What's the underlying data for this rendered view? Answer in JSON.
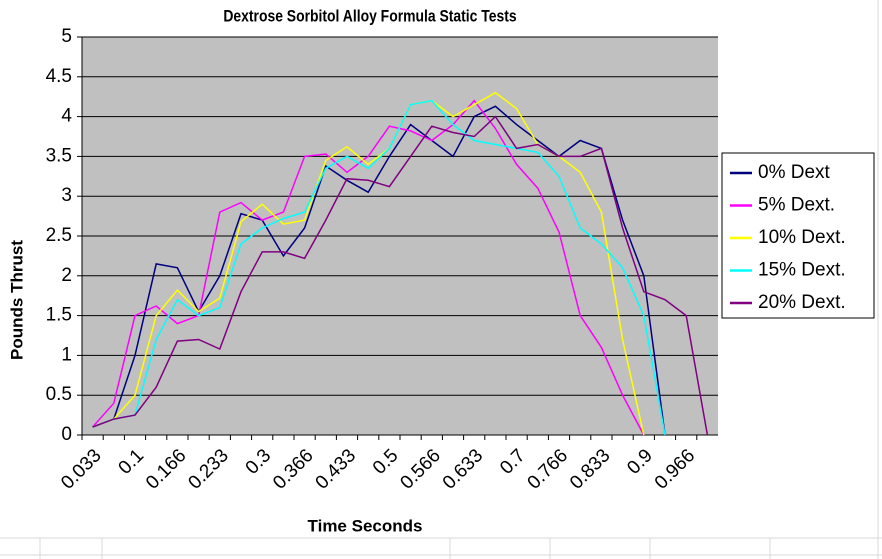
{
  "chart_data": {
    "type": "line",
    "title": "Dextrose Sorbitol Alloy Formula  Static Tests",
    "x_label": "Time Seconds",
    "y_label": "Pounds Thrust",
    "categories": [
      "0.033",
      null,
      "0.1",
      null,
      "0.166",
      null,
      "0.233",
      null,
      "0.3",
      null,
      "0.366",
      null,
      "0.433",
      null,
      "0.5",
      null,
      "0.566",
      null,
      "0.633",
      null,
      "0.7",
      null,
      "0.766",
      null,
      "0.833",
      null,
      "0.9",
      null,
      "0.966",
      null
    ],
    "series": [
      {
        "name": "0% Dext",
        "color": "#000080",
        "values": [
          0.1,
          0.2,
          1.0,
          2.15,
          2.1,
          1.55,
          2.0,
          2.78,
          2.7,
          2.25,
          2.6,
          3.38,
          3.2,
          3.05,
          3.5,
          3.9,
          3.7,
          3.5,
          4.0,
          4.13,
          3.9,
          3.7,
          3.5,
          3.7,
          3.6,
          2.7,
          2.0,
          0,
          null,
          null
        ]
      },
      {
        "name": "5% Dext.",
        "color": "#ff00ff",
        "values": [
          0.1,
          0.4,
          1.5,
          1.62,
          1.4,
          1.5,
          2.8,
          2.92,
          2.7,
          2.8,
          3.5,
          3.53,
          3.3,
          3.5,
          3.88,
          3.82,
          3.7,
          3.9,
          4.2,
          3.85,
          3.4,
          3.1,
          2.55,
          1.5,
          1.1,
          0.5,
          0,
          null,
          null,
          null
        ]
      },
      {
        "name": "10% Dext.",
        "color": "#ffff00",
        "values": [
          0.1,
          0.2,
          0.5,
          1.5,
          1.82,
          1.55,
          1.72,
          2.68,
          2.9,
          2.65,
          2.7,
          3.45,
          3.62,
          3.4,
          3.6,
          4.15,
          4.2,
          4.0,
          4.15,
          4.3,
          4.1,
          3.65,
          3.5,
          3.3,
          2.8,
          1.2,
          0,
          null,
          null,
          null
        ]
      },
      {
        "name": "15% Dext.",
        "color": "#00ffff",
        "values": [
          0.1,
          0.2,
          0.25,
          1.2,
          1.7,
          1.5,
          1.6,
          2.4,
          2.6,
          2.72,
          2.8,
          3.35,
          3.5,
          3.35,
          3.6,
          4.15,
          4.2,
          3.9,
          3.7,
          3.65,
          3.6,
          3.55,
          3.25,
          2.6,
          2.4,
          2.1,
          1.5,
          0,
          null,
          null
        ]
      },
      {
        "name": "20% Dext.",
        "color": "#800080",
        "values": [
          0.1,
          0.2,
          0.25,
          0.6,
          1.18,
          1.2,
          1.08,
          1.8,
          2.3,
          2.3,
          2.22,
          2.7,
          3.22,
          3.2,
          3.12,
          3.5,
          3.88,
          3.8,
          3.75,
          4.0,
          3.6,
          3.65,
          3.5,
          3.5,
          3.6,
          2.6,
          1.8,
          1.7,
          1.5,
          0
        ]
      }
    ],
    "ylim": [
      0,
      5
    ],
    "yticks": [
      0,
      0.5,
      1,
      1.5,
      2,
      2.5,
      3,
      3.5,
      4,
      4.5,
      5
    ],
    "grid": true,
    "legend": "right"
  }
}
